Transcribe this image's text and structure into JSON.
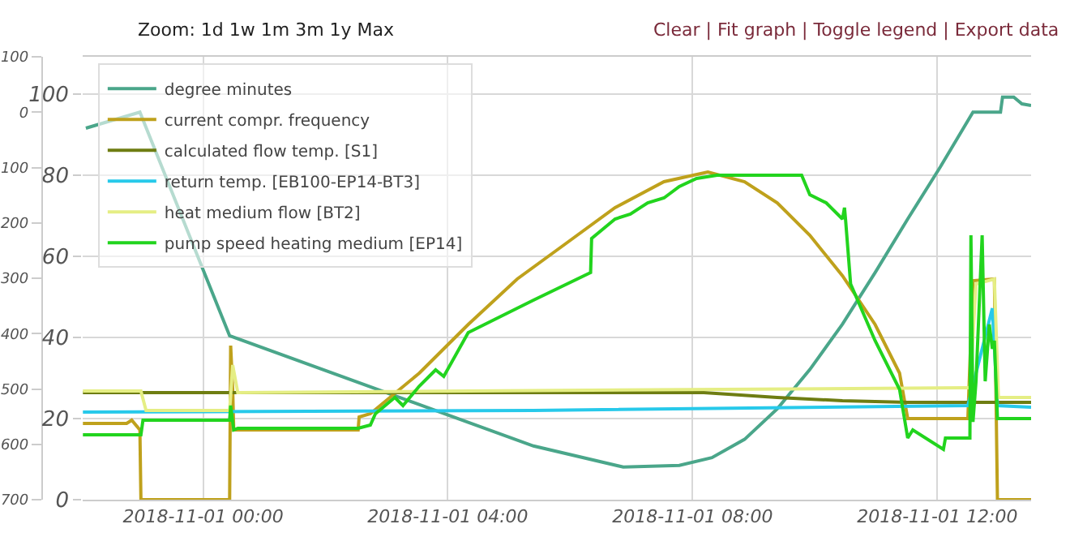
{
  "chart_data": {
    "type": "line",
    "annotations": [
      "Zoom: 1d 1w 1m 3m 1y Max",
      "Clear | Fit graph | Toggle legend | Export data"
    ],
    "xlim": [
      "2018-10-31T22:02",
      "2018-11-01T13:32"
    ],
    "xticks": [
      {
        "value": "2018-11-01T00:00",
        "label": "2018-11-01 00:00"
      },
      {
        "value": "2018-11-01T04:00",
        "label": "2018-11-01 04:00"
      },
      {
        "value": "2018-11-01T08:00",
        "label": "2018-11-01 08:00"
      },
      {
        "value": "2018-11-01T12:00",
        "label": "2018-11-01 12:00"
      }
    ],
    "ylim": [
      -700,
      100
    ],
    "yticks": [
      100,
      0,
      {
        "value": -100,
        "label": "100"
      },
      {
        "value": -200,
        "label": "200"
      },
      {
        "value": -300,
        "label": "300"
      },
      {
        "value": -400,
        "label": "400"
      },
      {
        "value": -500,
        "label": "500"
      },
      {
        "value": -600,
        "label": "600"
      },
      {
        "value": -700,
        "label": "700"
      }
    ],
    "y2lim": [
      0,
      109.2
    ],
    "y2ticks": [
      0,
      20,
      40,
      60,
      80,
      100
    ],
    "grid": true,
    "legend": "top left",
    "marker": "none",
    "line_style": "solid",
    "series": [
      {
        "name": "degree minutes",
        "color": "#4aa68a",
        "axis": "y",
        "x": [
          "2018-10-31T22:05",
          "2018-10-31T22:58",
          "2018-11-01T00:26",
          "2018-11-01T05:24",
          "2018-11-01T06:52",
          "2018-11-01T07:47",
          "2018-11-01T08:19",
          "2018-11-01T08:51",
          "2018-11-01T09:23",
          "2018-11-01T09:55",
          "2018-11-01T10:27",
          "2018-11-01T10:59",
          "2018-11-01T11:31",
          "2018-11-01T12:03",
          "2018-11-01T12:35",
          "2018-11-01T13:02",
          "2018-11-01T13:04",
          "2018-11-01T13:15",
          "2018-11-01T13:23",
          "2018-11-01T13:32"
        ],
        "values": [
          -29,
          0,
          -404,
          -603,
          -641,
          -638,
          -624,
          -591,
          -536,
          -465,
          -383,
          -290,
          -193,
          -99,
          0,
          0,
          27,
          27,
          15,
          12
        ]
      },
      {
        "name": "current compr. frequency",
        "color": "#bfa11c",
        "axis": "y2",
        "x": [
          "2018-10-31T22:02",
          "2018-10-31T22:45",
          "2018-10-31T22:50",
          "2018-10-31T22:58",
          "2018-10-31T22:59",
          "2018-11-01T00:26",
          "2018-11-01T00:27",
          "2018-11-01T00:29",
          "2018-11-01T00:30",
          "2018-11-01T02:32",
          "2018-11-01T02:33",
          "2018-11-01T02:44",
          "2018-11-01T03:32",
          "2018-11-01T04:20",
          "2018-11-01T05:08",
          "2018-11-01T05:56",
          "2018-11-01T06:44",
          "2018-11-01T07:32",
          "2018-11-01T08:15",
          "2018-11-01T08:51",
          "2018-11-01T09:23",
          "2018-11-01T09:55",
          "2018-11-01T10:27",
          "2018-11-01T10:59",
          "2018-11-01T11:23",
          "2018-11-01T11:31",
          "2018-11-01T12:30",
          "2018-11-01T12:35",
          "2018-11-01T12:56",
          "2018-11-01T12:59",
          "2018-11-01T13:32"
        ],
        "values": [
          18.8,
          18.8,
          19.6,
          17.2,
          0,
          0,
          38,
          27.2,
          17.2,
          17.2,
          20.4,
          21.2,
          31.2,
          43.2,
          54.4,
          63.2,
          72,
          78.4,
          80.8,
          78.4,
          73.2,
          65.2,
          55.2,
          43.2,
          31.2,
          20,
          20,
          54,
          54.4,
          0,
          0
        ]
      },
      {
        "name": "calculated flow temp. [S1]",
        "color": "#6e7d12",
        "axis": "y2",
        "x": [
          "2018-10-31T22:02",
          "2018-11-01T08:11",
          "2018-11-01T09:23",
          "2018-11-01T10:27",
          "2018-11-01T11:31",
          "2018-11-01T13:32"
        ],
        "values": [
          26.4,
          26.4,
          25.2,
          24.4,
          24,
          24
        ]
      },
      {
        "name": "return temp. [EB100-EP14-BT3]",
        "color": "#27c9ea",
        "axis": "y2",
        "x": [
          "2018-10-31T22:02",
          "2018-11-01T05:24",
          "2018-11-01T12:30",
          "2018-11-01T12:38",
          "2018-11-01T12:54",
          "2018-11-01T12:59",
          "2018-11-01T13:32"
        ],
        "values": [
          21.6,
          22,
          23.2,
          31.2,
          47.2,
          23.2,
          22.8
        ]
      },
      {
        "name": "heat medium flow [BT2]",
        "color": "#e5ee84",
        "axis": "y2",
        "x": [
          "2018-10-31T22:02",
          "2018-10-31T22:59",
          "2018-10-31T23:04",
          "2018-11-01T00:26",
          "2018-11-01T00:29",
          "2018-11-01T00:34",
          "2018-11-01T12:27",
          "2018-11-01T12:32",
          "2018-11-01T12:38",
          "2018-11-01T12:56",
          "2018-11-01T13:00",
          "2018-11-01T13:32"
        ],
        "values": [
          26.8,
          26.8,
          22,
          22,
          33.2,
          26.4,
          27.6,
          27.6,
          53.2,
          54.4,
          25.2,
          25.2
        ]
      },
      {
        "name": "pump speed heating medium [EP14]",
        "color": "#22d41e",
        "axis": "y2",
        "x": [
          "2018-10-31T22:02",
          "2018-10-31T22:59",
          "2018-10-31T23:01",
          "2018-11-01T00:26",
          "2018-11-01T00:27",
          "2018-11-01T00:30",
          "2018-11-01T00:34",
          "2018-11-01T02:32",
          "2018-11-01T02:44",
          "2018-11-01T02:49",
          "2018-11-01T03:08",
          "2018-11-01T03:16",
          "2018-11-01T03:32",
          "2018-11-01T03:48",
          "2018-11-01T03:56",
          "2018-11-01T04:20",
          "2018-11-01T04:36",
          "2018-11-01T04:52",
          "2018-11-01T05:08",
          "2018-11-01T05:24",
          "2018-11-01T06:20",
          "2018-11-01T06:21",
          "2018-11-01T06:44",
          "2018-11-01T06:59",
          "2018-11-01T07:16",
          "2018-11-01T07:32",
          "2018-11-01T07:47",
          "2018-11-01T08:04",
          "2018-11-01T08:24",
          "2018-11-01T09:47",
          "2018-11-01T09:55",
          "2018-11-01T10:11",
          "2018-11-01T10:27",
          "2018-11-01T10:29",
          "2018-11-01T10:30",
          "2018-11-01T10:35",
          "2018-11-01T10:59",
          "2018-11-01T11:23",
          "2018-11-01T11:31",
          "2018-11-01T11:36",
          "2018-11-01T12:06",
          "2018-11-01T12:08",
          "2018-11-01T12:32",
          "2018-11-01T12:33",
          "2018-11-01T12:35",
          "2018-11-01T12:38",
          "2018-11-01T12:44",
          "2018-11-01T12:47",
          "2018-11-01T12:51",
          "2018-11-01T12:54",
          "2018-11-01T12:56",
          "2018-11-01T12:59",
          "2018-11-01T13:32"
        ],
        "values": [
          16,
          16,
          19.6,
          19.6,
          23.2,
          17.2,
          17.6,
          17.6,
          18.4,
          21.2,
          25.2,
          23.2,
          28,
          32,
          30.4,
          41.2,
          43.2,
          45.2,
          47.2,
          49.2,
          56,
          64.4,
          69.2,
          70.4,
          73.2,
          74.4,
          77.2,
          79.2,
          80,
          80,
          75.2,
          73.2,
          69.2,
          72,
          69.2,
          53.2,
          39.2,
          27.2,
          15.2,
          17.2,
          12.4,
          15.2,
          15.2,
          65.2,
          19.2,
          29.2,
          65.2,
          29.2,
          43.2,
          37.2,
          39.2,
          20,
          20
        ]
      }
    ]
  }
}
